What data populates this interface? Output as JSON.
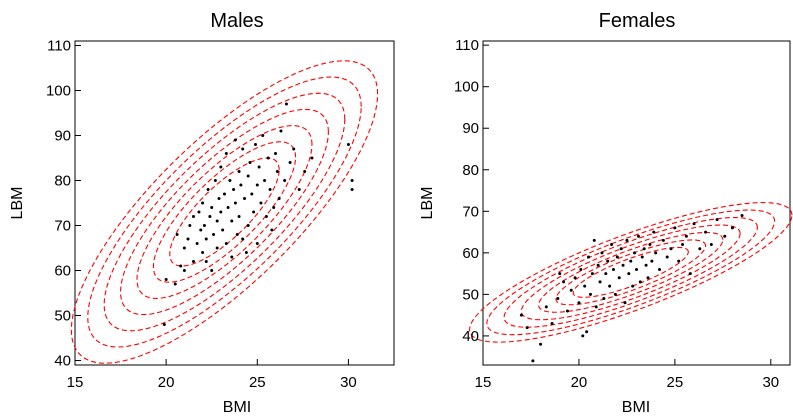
{
  "chart_data": [
    {
      "type": "scatter",
      "title": "Males",
      "xlabel": "BMI",
      "ylabel": "LBM",
      "xlim": [
        15,
        32.5
      ],
      "ylim": [
        39,
        111
      ],
      "xticks": [
        15,
        20,
        25,
        30
      ],
      "yticks": [
        40,
        50,
        60,
        70,
        80,
        90,
        100,
        110
      ],
      "grid": false,
      "colors": {
        "points": "#000000",
        "contours": "#ff0000"
      },
      "contours": {
        "center": [
          23.2,
          73
        ],
        "sd": [
          3.0,
          12.0
        ],
        "correlation": 0.78,
        "levels": [
          1.0,
          1.3,
          1.6,
          1.9,
          2.2,
          2.5,
          2.8
        ]
      },
      "series": [
        {
          "points": [
            [
              19.9,
              48
            ],
            [
              20.0,
              58
            ],
            [
              20.5,
              57
            ],
            [
              20.8,
              61
            ],
            [
              21.0,
              65
            ],
            [
              21.2,
              67
            ],
            [
              21.3,
              70
            ],
            [
              21.5,
              72
            ],
            [
              21.5,
              62
            ],
            [
              21.7,
              66
            ],
            [
              21.8,
              73
            ],
            [
              21.9,
              69
            ],
            [
              22.0,
              64
            ],
            [
              22.0,
              75
            ],
            [
              22.1,
              70
            ],
            [
              22.2,
              67
            ],
            [
              22.3,
              78
            ],
            [
              22.4,
              72
            ],
            [
              22.5,
              60
            ],
            [
              22.5,
              74
            ],
            [
              22.6,
              68
            ],
            [
              22.7,
              80
            ],
            [
              22.8,
              71
            ],
            [
              22.8,
              65
            ],
            [
              22.9,
              76
            ],
            [
              23.0,
              73
            ],
            [
              23.0,
              83
            ],
            [
              23.1,
              69
            ],
            [
              23.2,
              77
            ],
            [
              23.3,
              86
            ],
            [
              23.3,
              66
            ],
            [
              23.4,
              74
            ],
            [
              23.5,
              80
            ],
            [
              23.6,
              71
            ],
            [
              23.7,
              78
            ],
            [
              23.8,
              89
            ],
            [
              23.8,
              75
            ],
            [
              23.9,
              68
            ],
            [
              24.0,
              82
            ],
            [
              24.0,
              72
            ],
            [
              24.1,
              79
            ],
            [
              24.2,
              87
            ],
            [
              24.3,
              76
            ],
            [
              24.4,
              64
            ],
            [
              24.5,
              81
            ],
            [
              24.5,
              70
            ],
            [
              24.6,
              84
            ],
            [
              24.7,
              77
            ],
            [
              24.8,
              73
            ],
            [
              24.9,
              88
            ],
            [
              25.0,
              79
            ],
            [
              25.0,
              66
            ],
            [
              25.1,
              83
            ],
            [
              25.2,
              75
            ],
            [
              25.3,
              90
            ],
            [
              25.4,
              80
            ],
            [
              25.5,
              72
            ],
            [
              25.6,
              85
            ],
            [
              25.7,
              78
            ],
            [
              25.8,
              69
            ],
            [
              26.0,
              86
            ],
            [
              26.1,
              82
            ],
            [
              26.2,
              76
            ],
            [
              26.3,
              91
            ],
            [
              26.5,
              80
            ],
            [
              26.6,
              97
            ],
            [
              26.8,
              84
            ],
            [
              27.0,
              87
            ],
            [
              27.3,
              78
            ],
            [
              27.6,
              82
            ],
            [
              28.0,
              85
            ],
            [
              30.0,
              88
            ],
            [
              30.2,
              80
            ],
            [
              30.2,
              78
            ],
            [
              21.0,
              60
            ],
            [
              22.2,
              62
            ],
            [
              23.6,
              63
            ],
            [
              24.2,
              67
            ],
            [
              20.6,
              68
            ],
            [
              25.9,
              74
            ]
          ]
        }
      ]
    },
    {
      "type": "scatter",
      "title": "Females",
      "xlabel": "BMI",
      "ylabel": "LBM",
      "xlim": [
        15,
        31
      ],
      "ylim": [
        33,
        111
      ],
      "xticks": [
        15,
        20,
        25,
        30
      ],
      "yticks": [
        40,
        50,
        60,
        70,
        80,
        90,
        100,
        110
      ],
      "grid": false,
      "colors": {
        "points": "#000000",
        "contours": "#ff0000"
      },
      "contours": {
        "center": [
          22.7,
          55.3
        ],
        "sd": [
          3.0,
          6.0
        ],
        "correlation": 0.82,
        "levels": [
          1.0,
          1.3,
          1.6,
          1.9,
          2.2,
          2.5,
          2.8
        ]
      },
      "series": [
        {
          "points": [
            [
              17.0,
              45
            ],
            [
              17.3,
              42
            ],
            [
              17.6,
              34
            ],
            [
              18.0,
              38
            ],
            [
              18.3,
              47
            ],
            [
              18.6,
              43
            ],
            [
              18.9,
              49
            ],
            [
              19.2,
              53
            ],
            [
              19.4,
              46
            ],
            [
              19.6,
              51
            ],
            [
              19.8,
              54
            ],
            [
              20.0,
              48
            ],
            [
              20.1,
              56
            ],
            [
              20.3,
              52
            ],
            [
              20.4,
              41
            ],
            [
              20.5,
              59
            ],
            [
              20.6,
              50
            ],
            [
              20.7,
              55
            ],
            [
              20.8,
              63
            ],
            [
              20.9,
              47
            ],
            [
              21.0,
              57
            ],
            [
              21.1,
              53
            ],
            [
              21.2,
              60
            ],
            [
              21.3,
              49
            ],
            [
              21.4,
              55
            ],
            [
              21.5,
              58
            ],
            [
              21.6,
              52
            ],
            [
              21.7,
              62
            ],
            [
              21.8,
              56
            ],
            [
              21.9,
              50
            ],
            [
              22.0,
              59
            ],
            [
              22.1,
              54
            ],
            [
              22.2,
              61
            ],
            [
              22.3,
              57
            ],
            [
              22.4,
              48
            ],
            [
              22.5,
              63
            ],
            [
              22.6,
              55
            ],
            [
              22.7,
              58
            ],
            [
              22.8,
              52
            ],
            [
              22.9,
              60
            ],
            [
              23.0,
              56
            ],
            [
              23.1,
              64
            ],
            [
              23.2,
              53
            ],
            [
              23.3,
              59
            ],
            [
              23.4,
              61
            ],
            [
              23.5,
              57
            ],
            [
              23.6,
              54
            ],
            [
              23.7,
              62
            ],
            [
              23.8,
              58
            ],
            [
              23.9,
              65
            ],
            [
              24.0,
              60
            ],
            [
              24.2,
              56
            ],
            [
              24.4,
              63
            ],
            [
              24.6,
              59
            ],
            [
              24.8,
              61
            ],
            [
              25.0,
              66
            ],
            [
              25.2,
              58
            ],
            [
              25.4,
              62
            ],
            [
              25.6,
              64
            ],
            [
              25.8,
              55
            ],
            [
              26.0,
              67
            ],
            [
              26.3,
              61
            ],
            [
              26.6,
              65
            ],
            [
              26.9,
              62
            ],
            [
              27.2,
              68
            ],
            [
              27.6,
              64
            ],
            [
              28.0,
              66
            ],
            [
              28.5,
              69
            ],
            [
              19.0,
              55
            ],
            [
              20.2,
              40
            ]
          ]
        }
      ]
    }
  ]
}
